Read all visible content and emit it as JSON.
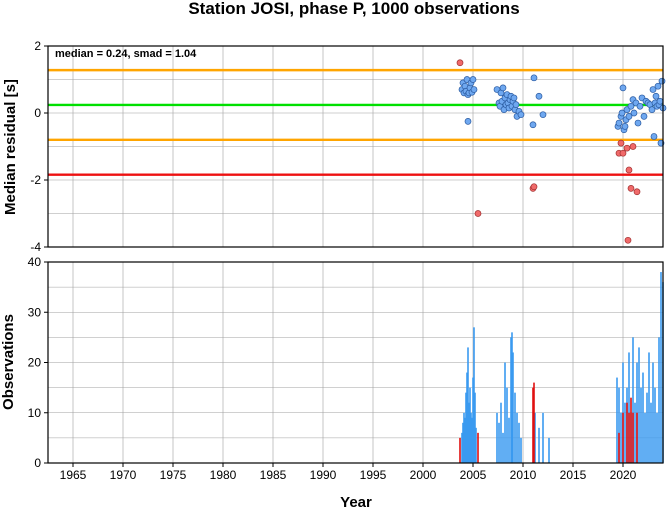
{
  "title": "Station JOSI, phase P, 1000 observations",
  "colors": {
    "median_line": "#00e000",
    "smad_lines": "#ffa500",
    "limit_line": "#ee1111",
    "normal_point": "#6fa8f0",
    "outlier_point": "#f06a6a",
    "normal_bar": "#3a9af0",
    "outlier_bar": "#e01010"
  },
  "chart_data": [
    {
      "type": "scatter",
      "ylabel": "Median residual [s]",
      "annotation": "median = 0.24, smad = 1.04",
      "xlim": [
        1962.5,
        2024
      ],
      "ylim": [
        -4,
        2
      ],
      "yticks": [
        "2",
        "0",
        "-2",
        "-4"
      ],
      "ytick_values": [
        2,
        0,
        -2,
        -4
      ],
      "grid": true,
      "hlines": [
        {
          "name": "median",
          "y": 0.24,
          "color": "#00e000"
        },
        {
          "name": "median + smad",
          "y": 1.28,
          "color": "#ffa500"
        },
        {
          "name": "median - smad",
          "y": -0.8,
          "color": "#ffa500"
        },
        {
          "name": "lower limit",
          "y": -1.84,
          "color": "#ee1111"
        }
      ],
      "series": [
        {
          "kind": "normal",
          "points": [
            [
              2003.9,
              0.7
            ],
            [
              2004.0,
              0.9
            ],
            [
              2004.1,
              0.6
            ],
            [
              2004.2,
              0.8
            ],
            [
              2004.3,
              0.65
            ],
            [
              2004.4,
              1.0
            ],
            [
              2004.5,
              0.55
            ],
            [
              2004.6,
              0.6
            ],
            [
              2004.7,
              0.75
            ],
            [
              2004.8,
              0.9
            ],
            [
              2004.9,
              0.62
            ],
            [
              2005.0,
              1.0
            ],
            [
              2005.1,
              0.7
            ],
            [
              2004.5,
              -0.25
            ],
            [
              2007.4,
              0.7
            ],
            [
              2007.6,
              0.3
            ],
            [
              2007.7,
              0.2
            ],
            [
              2007.8,
              0.6
            ],
            [
              2007.9,
              0.35
            ],
            [
              2008.0,
              0.75
            ],
            [
              2008.1,
              0.1
            ],
            [
              2008.2,
              0.45
            ],
            [
              2008.3,
              0.25
            ],
            [
              2008.4,
              0.55
            ],
            [
              2008.5,
              0.3
            ],
            [
              2008.6,
              0.15
            ],
            [
              2008.7,
              0.4
            ],
            [
              2008.8,
              0.5
            ],
            [
              2008.9,
              0.2
            ],
            [
              2009.0,
              0.35
            ],
            [
              2009.1,
              0.45
            ],
            [
              2009.2,
              0.1
            ],
            [
              2009.3,
              0.25
            ],
            [
              2009.4,
              -0.1
            ],
            [
              2009.6,
              0.05
            ],
            [
              2009.8,
              -0.05
            ],
            [
              2011.1,
              1.05
            ],
            [
              2011.0,
              -0.35
            ],
            [
              2011.6,
              0.5
            ],
            [
              2012.0,
              -0.05
            ],
            [
              2019.5,
              -0.4
            ],
            [
              2019.6,
              -0.3
            ],
            [
              2019.8,
              -0.1
            ],
            [
              2019.9,
              0.0
            ],
            [
              2020.0,
              0.75
            ],
            [
              2020.1,
              -0.5
            ],
            [
              2020.2,
              -0.4
            ],
            [
              2020.3,
              -0.2
            ],
            [
              2020.4,
              0.1
            ],
            [
              2020.6,
              -0.1
            ],
            [
              2020.8,
              0.2
            ],
            [
              2021.0,
              0.4
            ],
            [
              2021.1,
              0.0
            ],
            [
              2021.3,
              0.3
            ],
            [
              2021.5,
              -0.3
            ],
            [
              2021.7,
              0.2
            ],
            [
              2021.9,
              0.45
            ],
            [
              2022.1,
              -0.1
            ],
            [
              2022.3,
              0.35
            ],
            [
              2022.5,
              0.3
            ],
            [
              2022.7,
              0.25
            ],
            [
              2022.9,
              0.1
            ],
            [
              2023.0,
              0.7
            ],
            [
              2023.1,
              -0.7
            ],
            [
              2023.2,
              0.3
            ],
            [
              2023.3,
              0.5
            ],
            [
              2023.4,
              0.2
            ],
            [
              2023.5,
              0.8
            ],
            [
              2023.6,
              0.25
            ],
            [
              2023.7,
              0.35
            ],
            [
              2023.8,
              -0.9
            ],
            [
              2023.9,
              0.95
            ],
            [
              2024.0,
              0.15
            ]
          ]
        },
        {
          "kind": "outlier",
          "points": [
            [
              2003.7,
              1.5
            ],
            [
              2005.5,
              -3.0
            ],
            [
              2011.0,
              -2.25
            ],
            [
              2011.1,
              -2.2
            ],
            [
              2019.6,
              -1.2
            ],
            [
              2019.8,
              -0.9
            ],
            [
              2020.0,
              -1.2
            ],
            [
              2020.4,
              -1.05
            ],
            [
              2020.6,
              -1.7
            ],
            [
              2020.8,
              -2.25
            ],
            [
              2021.0,
              -1.0
            ],
            [
              2021.4,
              -2.35
            ],
            [
              2020.5,
              -3.8
            ]
          ]
        }
      ]
    },
    {
      "type": "bar",
      "xlabel": "Year",
      "ylabel": "Observations",
      "xlim": [
        1962.5,
        2024
      ],
      "ylim": [
        0,
        40
      ],
      "yticks": [
        "40",
        "30",
        "20",
        "10",
        "0"
      ],
      "ytick_values": [
        40,
        30,
        20,
        10,
        0
      ],
      "xticks": [
        "1965",
        "1970",
        "1975",
        "1980",
        "1985",
        "1990",
        "1995",
        "2000",
        "2005",
        "2010",
        "2015",
        "2020"
      ],
      "xtick_values": [
        1965,
        1970,
        1975,
        1980,
        1985,
        1990,
        1995,
        2000,
        2005,
        2010,
        2015,
        2020
      ],
      "grid": true,
      "series": [
        {
          "kind": "normal",
          "bars": [
            [
              2003.9,
              6
            ],
            [
              2004.0,
              8
            ],
            [
              2004.1,
              10
            ],
            [
              2004.2,
              9
            ],
            [
              2004.3,
              14
            ],
            [
              2004.4,
              18
            ],
            [
              2004.5,
              23
            ],
            [
              2004.6,
              12
            ],
            [
              2004.7,
              15
            ],
            [
              2004.8,
              10
            ],
            [
              2004.9,
              9
            ],
            [
              2005.0,
              17
            ],
            [
              2005.1,
              27
            ],
            [
              2005.2,
              14
            ],
            [
              2005.3,
              7
            ],
            [
              2007.4,
              10
            ],
            [
              2007.6,
              8
            ],
            [
              2007.8,
              12
            ],
            [
              2008.0,
              6
            ],
            [
              2008.2,
              20
            ],
            [
              2008.4,
              15
            ],
            [
              2008.6,
              9
            ],
            [
              2008.8,
              25
            ],
            [
              2008.9,
              26
            ],
            [
              2009.0,
              22
            ],
            [
              2009.2,
              14
            ],
            [
              2009.4,
              10
            ],
            [
              2009.6,
              8
            ],
            [
              2009.8,
              5
            ],
            [
              2011.2,
              10
            ],
            [
              2011.6,
              7
            ],
            [
              2012.0,
              10
            ],
            [
              2012.6,
              5
            ],
            [
              2019.4,
              17
            ],
            [
              2019.6,
              15
            ],
            [
              2019.8,
              10
            ],
            [
              2020.0,
              20
            ],
            [
              2020.2,
              12
            ],
            [
              2020.4,
              15
            ],
            [
              2020.6,
              22
            ],
            [
              2020.8,
              10
            ],
            [
              2021.0,
              25
            ],
            [
              2021.2,
              12
            ],
            [
              2021.4,
              20
            ],
            [
              2021.6,
              23
            ],
            [
              2021.8,
              15
            ],
            [
              2022.0,
              18
            ],
            [
              2022.2,
              10
            ],
            [
              2022.4,
              14
            ],
            [
              2022.6,
              22
            ],
            [
              2022.8,
              12
            ],
            [
              2023.0,
              20
            ],
            [
              2023.2,
              15
            ],
            [
              2023.4,
              10
            ],
            [
              2023.6,
              25
            ],
            [
              2023.8,
              38
            ],
            [
              2024.0,
              36
            ]
          ]
        },
        {
          "kind": "outlier",
          "bars": [
            [
              2003.7,
              5
            ],
            [
              2005.5,
              6
            ],
            [
              2011.0,
              15
            ],
            [
              2011.1,
              16
            ],
            [
              2019.6,
              6
            ],
            [
              2020.0,
              10
            ],
            [
              2020.4,
              12
            ],
            [
              2020.6,
              10
            ],
            [
              2020.8,
              13
            ],
            [
              2021.0,
              10
            ],
            [
              2021.4,
              10
            ]
          ]
        }
      ]
    }
  ]
}
